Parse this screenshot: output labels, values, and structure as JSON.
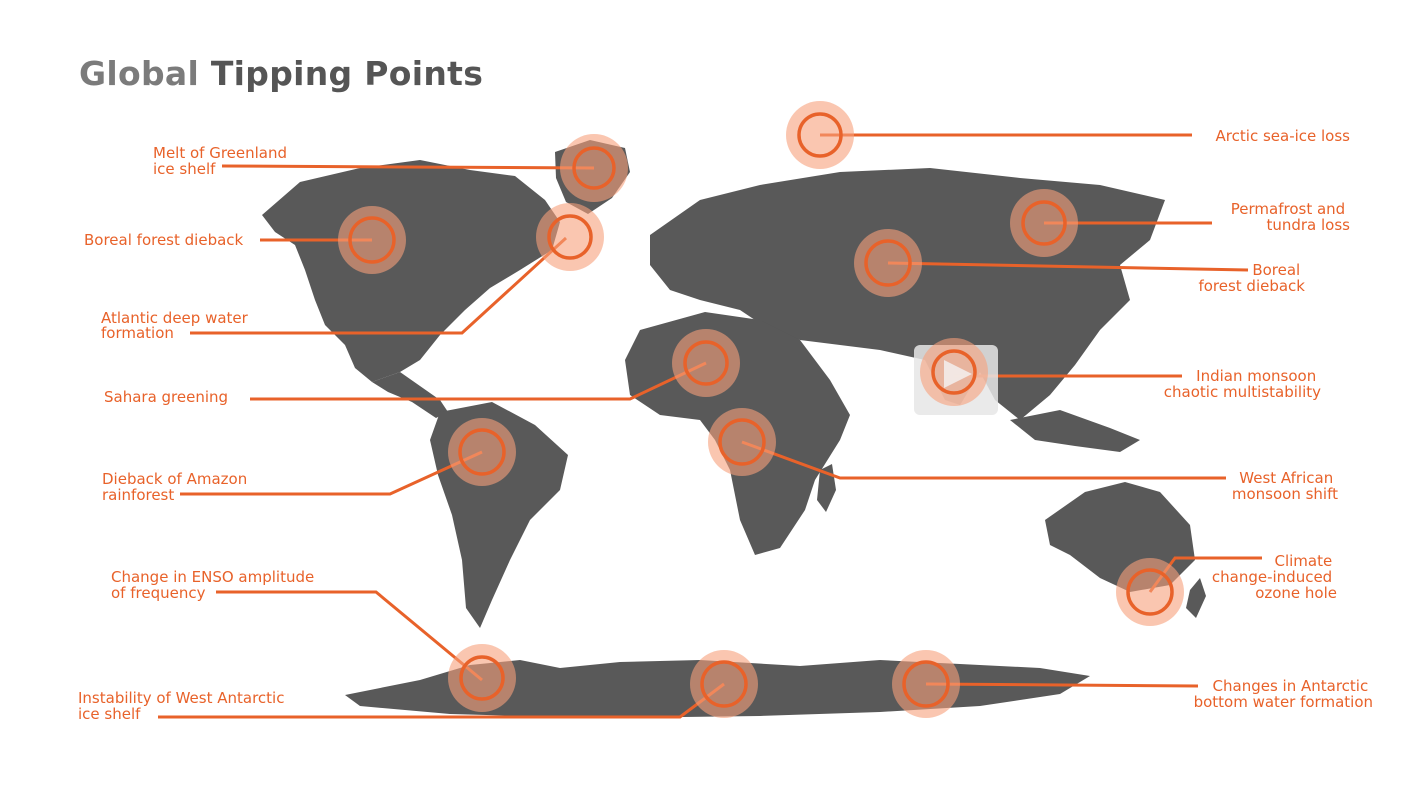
{
  "title": {
    "word1": "Global",
    "word2": "Tipping Points"
  },
  "colors": {
    "accent": "#e8622a",
    "land": "#595959",
    "halo": "#f7a07c",
    "title_light": "#7b7b7b",
    "title_dark": "#555555"
  },
  "tipping_points": [
    {
      "id": "greenland",
      "lines": [
        "Melt of Greenland",
        "ice shelf"
      ]
    },
    {
      "id": "boreal-na",
      "lines": [
        "Boreal forest dieback"
      ]
    },
    {
      "id": "atlantic",
      "lines": [
        "Atlantic deep water",
        "formation"
      ]
    },
    {
      "id": "sahara",
      "lines": [
        "Sahara greening"
      ]
    },
    {
      "id": "amazon",
      "lines": [
        "Dieback of Amazon",
        "rainforest"
      ]
    },
    {
      "id": "enso",
      "lines": [
        "Change in ENSO amplitude",
        "of frequency"
      ]
    },
    {
      "id": "wais",
      "lines": [
        "Instability of West Antarctic",
        "ice shelf"
      ]
    },
    {
      "id": "arctic",
      "lines": [
        "Arctic sea-ice loss"
      ]
    },
    {
      "id": "permafrost",
      "lines": [
        "Permafrost and",
        "tundra loss"
      ]
    },
    {
      "id": "boreal-eu",
      "lines": [
        "Boreal",
        "forest dieback"
      ]
    },
    {
      "id": "monsoon",
      "lines": [
        "Indian monsoon",
        "chaotic multistability"
      ]
    },
    {
      "id": "wafrica",
      "lines": [
        "West African",
        "monsoon shift"
      ]
    },
    {
      "id": "ozone",
      "lines": [
        "Climate",
        "change-induced",
        "ozone hole"
      ]
    },
    {
      "id": "antarctic-bw",
      "lines": [
        "Changes in Antarctic",
        "bottom water formation"
      ]
    }
  ]
}
